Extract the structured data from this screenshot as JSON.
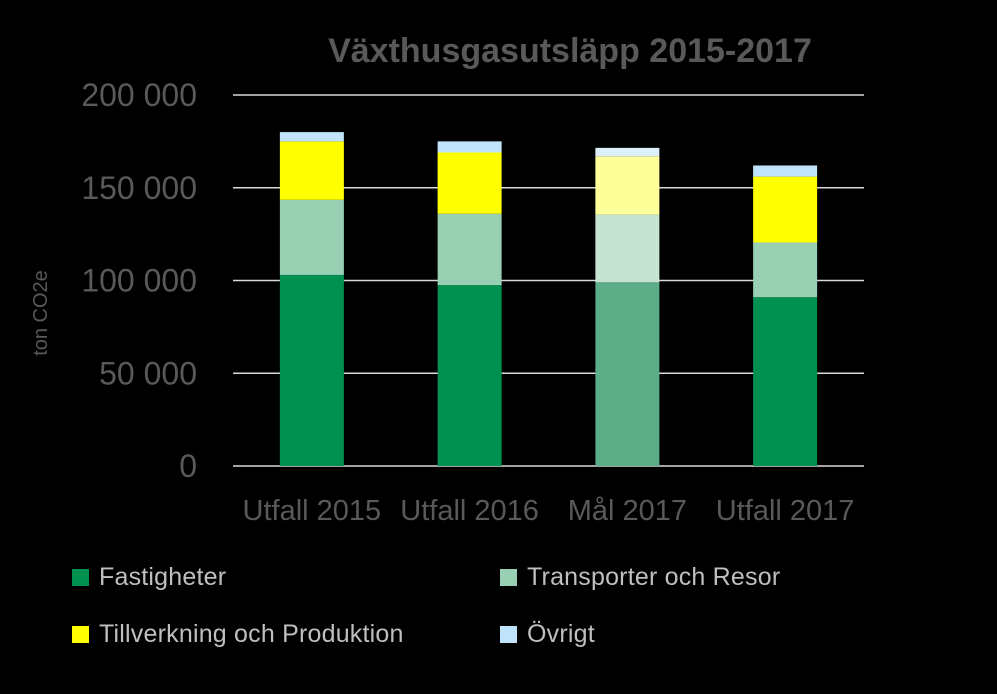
{
  "chart_data": {
    "type": "bar",
    "stacked": true,
    "title": "Växthusgasutsläpp 2015-2017",
    "ylabel": "ton CO2e",
    "xlabel": "",
    "ylim": [
      0,
      200000
    ],
    "yticks": [
      0,
      50000,
      100000,
      150000,
      200000
    ],
    "ytick_labels": [
      "0",
      "50 000",
      "100 000",
      "150 000",
      "200 000"
    ],
    "grid": true,
    "legend_position": "bottom",
    "categories": [
      "Utfall 2015",
      "Utfall 2016",
      "Mål 2017",
      "Utfall 2017"
    ],
    "faded_categories": [
      "Mål 2017"
    ],
    "series": [
      {
        "name": "Fastigheter",
        "color": "#009150",
        "faded_color": "#5cae88",
        "values": [
          103000,
          97500,
          99000,
          91000
        ]
      },
      {
        "name": "Transporter och Resor",
        "color": "#99d0b4",
        "faded_color": "#c6e4d3",
        "values": [
          40500,
          38500,
          36500,
          29500
        ]
      },
      {
        "name": "Tillverkning och Produktion",
        "color": "#ffff00",
        "faded_color": "#ffff99",
        "values": [
          31500,
          33000,
          31500,
          35500
        ]
      },
      {
        "name": "Övrigt",
        "color": "#bfe3fa",
        "faded_color": "#ddf0fc",
        "values": [
          5000,
          6000,
          4500,
          6000
        ]
      }
    ]
  }
}
